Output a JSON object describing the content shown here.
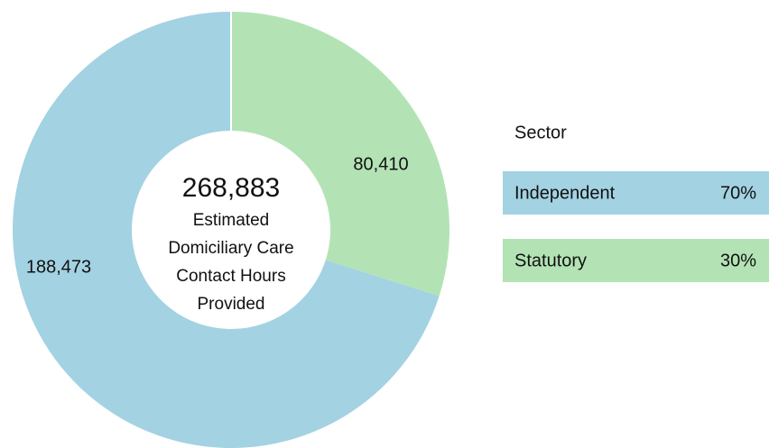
{
  "chart_data": {
    "type": "donut",
    "categories": [
      "Independent",
      "Statutory"
    ],
    "values": [
      188473,
      80410
    ],
    "value_labels": [
      "188,473",
      "80,410"
    ],
    "colors": [
      "#a3d2e2",
      "#b3e3b5"
    ],
    "center_value": {
      "value": 268883,
      "label": "268,883"
    },
    "center_text": [
      "Estimated",
      "Domiciliary Care",
      "Contact Hours",
      "Provided"
    ],
    "legend_title": "Sector",
    "percents": [
      70,
      30
    ],
    "percent_labels": [
      "70%",
      "30%"
    ]
  }
}
